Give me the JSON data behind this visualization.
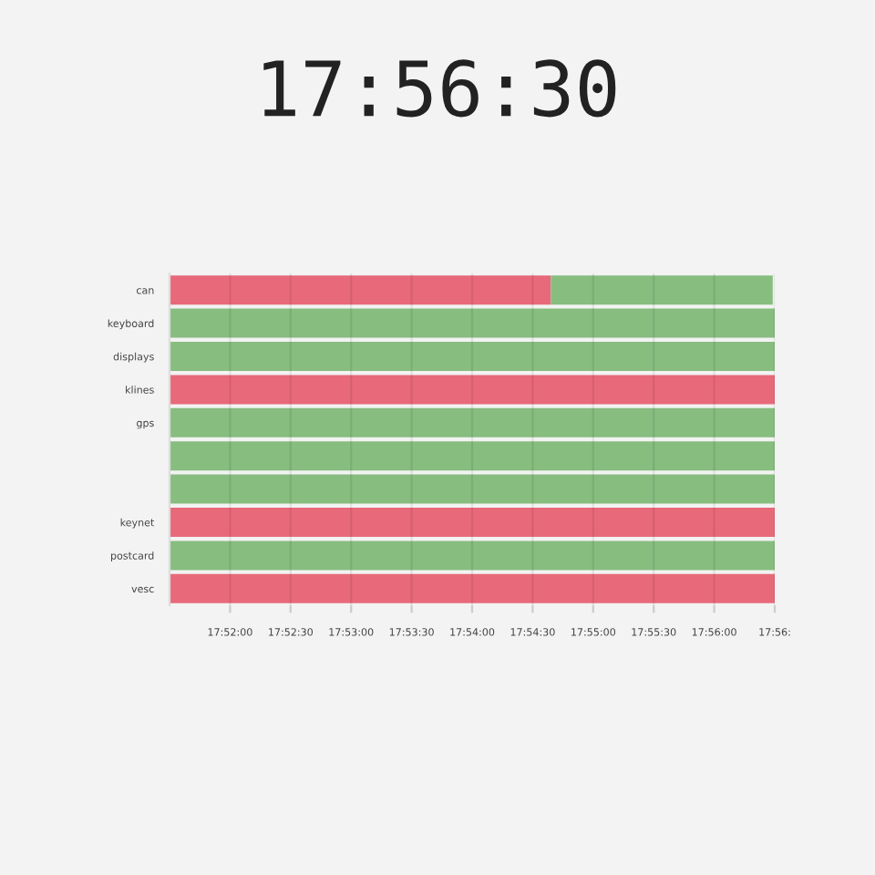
{
  "chart_data": {
    "type": "bar",
    "orientation": "horizontal",
    "title": "17:56:30",
    "categories": [
      "can",
      "keyboard",
      "displays",
      "klines",
      "gps",
      null,
      null,
      "keynet",
      "postcard",
      "vesc"
    ],
    "series": [
      {
        "color": "#e8697a",
        "base": [
          17.858333,
          null,
          null,
          17.858333,
          null,
          null,
          null,
          17.858333,
          null,
          17.858333
        ],
        "values": [
          0.0525,
          null,
          null,
          0.083333,
          null,
          null,
          null,
          0.083333,
          null,
          0.083333
        ]
      },
      {
        "color": "#87bd7f",
        "base": [
          17.910833,
          17.858333,
          17.858333,
          null,
          17.858333,
          17.858333,
          17.858333,
          null,
          17.858333,
          null
        ],
        "values": [
          0.030556,
          0.083333,
          0.083333,
          null,
          0.083333,
          0.083333,
          0.083333,
          null,
          0.083333,
          null
        ]
      }
    ],
    "xlim": [
      17.858333,
      17.941667
    ],
    "xticks": [
      {
        "value": 17.866667,
        "label": "17:52:00"
      },
      {
        "value": 17.875,
        "label": "17:52:30"
      },
      {
        "value": 17.883333,
        "label": "17:53:00"
      },
      {
        "value": 17.891667,
        "label": "17:53:30"
      },
      {
        "value": 17.9,
        "label": "17:54:00"
      },
      {
        "value": 17.908333,
        "label": "17:54:30"
      },
      {
        "value": 17.916667,
        "label": "17:55:00"
      },
      {
        "value": 17.925,
        "label": "17:55:30"
      },
      {
        "value": 17.933333,
        "label": "17:56:00"
      },
      {
        "value": 17.941667,
        "label": "17:56:"
      }
    ],
    "grid": "x"
  }
}
